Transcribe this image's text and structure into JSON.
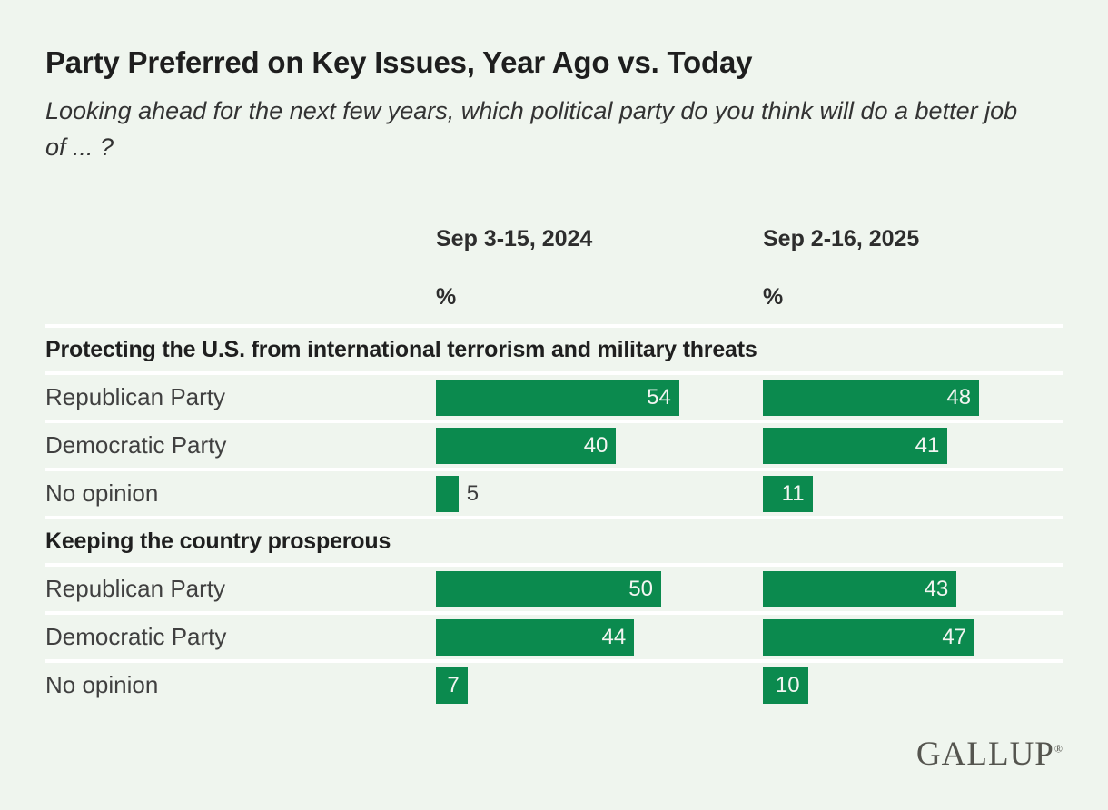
{
  "chart_data": {
    "type": "bar",
    "title": "Party Preferred on Key Issues, Year Ago vs. Today",
    "subtitle": "Looking ahead for the next few years, which political party do you think will do a better job of ... ?",
    "columns": [
      "Sep 3-15, 2024",
      "Sep 2-16, 2025"
    ],
    "unit": "%",
    "sections": [
      {
        "header": "Protecting the U.S. from international terrorism and military threats",
        "rows": [
          {
            "label": "Republican Party",
            "values": [
              54,
              48
            ]
          },
          {
            "label": "Democratic Party",
            "values": [
              40,
              41
            ]
          },
          {
            "label": "No opinion",
            "values": [
              5,
              11
            ]
          }
        ]
      },
      {
        "header": "Keeping the country prosperous",
        "rows": [
          {
            "label": "Republican Party",
            "values": [
              50,
              43
            ]
          },
          {
            "label": "Democratic Party",
            "values": [
              44,
              47
            ]
          },
          {
            "label": "No opinion",
            "values": [
              7,
              10
            ]
          }
        ]
      }
    ],
    "value_range": [
      0,
      100
    ],
    "bar_color": "#0b8a4e",
    "background_color": "#eff5ee",
    "divider_color": "#ffffff",
    "legend_position": "none",
    "grid": false
  },
  "branding": {
    "source": "GALLUP",
    "registered_mark": "®"
  }
}
